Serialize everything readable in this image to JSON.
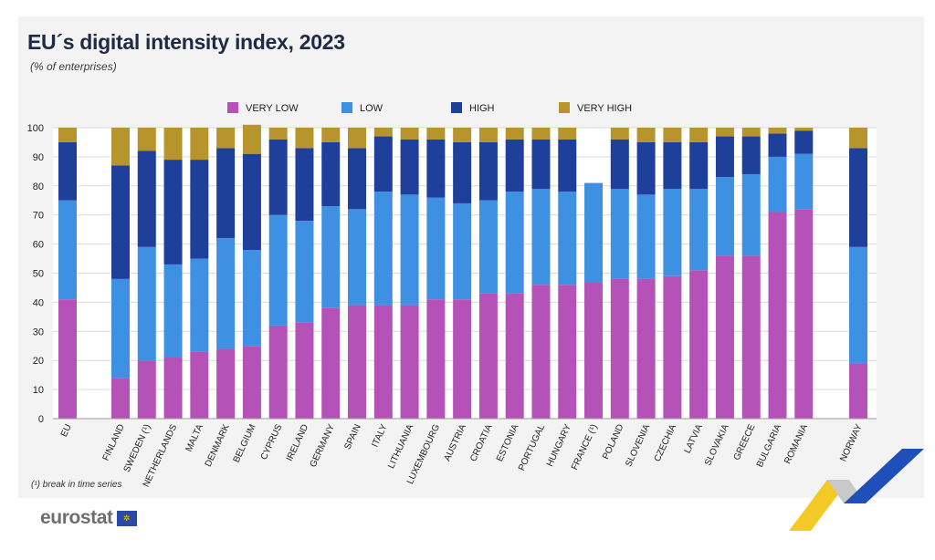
{
  "header": {
    "title": "EU´s digital intensity index, 2023",
    "subtitle": "(% of enterprises)"
  },
  "footer": {
    "footnote": "(¹) break in time series",
    "logo_text": "eurostat"
  },
  "colors": {
    "very_low": "#b552b8",
    "low": "#3e91e2",
    "high": "#1e3f9a",
    "very_high": "#b8942c"
  },
  "chart_data": {
    "type": "bar",
    "stacked": true,
    "ylim": [
      0,
      100
    ],
    "yticks": [
      0,
      10,
      20,
      30,
      40,
      50,
      60,
      70,
      80,
      90,
      100
    ],
    "grid": true,
    "legend_position": "top",
    "categories": [
      "EU",
      "FINLAND",
      "SWEDEN (¹)",
      "NETHERLANDS",
      "MALTA",
      "DENMARK",
      "BELGIUM",
      "CYPRUS",
      "IRELAND",
      "GERMANY",
      "SPAIN",
      "ITALY",
      "LITHUANIA",
      "LUXEMBOURG",
      "AUSTRIA",
      "CROATIA",
      "ESTONIA",
      "PORTUGAL",
      "HUNGARY",
      "FRANCE (¹)",
      "POLAND",
      "SLOVENIA",
      "CZECHIA",
      "LATVIA",
      "SLOVAKIA",
      "GREECE",
      "BULGARIA",
      "ROMANIA",
      "NORWAY"
    ],
    "series": [
      {
        "name": "VERY LOW",
        "color_key": "very_low",
        "values": [
          41,
          14,
          20,
          21,
          23,
          24,
          25,
          32,
          33,
          38,
          39,
          39,
          39,
          41,
          41,
          43,
          43,
          46,
          46,
          47,
          48,
          48,
          49,
          51,
          56,
          56,
          71,
          72,
          19
        ]
      },
      {
        "name": "LOW",
        "color_key": "low",
        "values": [
          34,
          34,
          39,
          32,
          32,
          38,
          33,
          38,
          35,
          35,
          33,
          39,
          38,
          35,
          33,
          32,
          35,
          33,
          32,
          34,
          31,
          29,
          30,
          28,
          27,
          28,
          19,
          19,
          40
        ]
      },
      {
        "name": "HIGH",
        "color_key": "high",
        "values": [
          20,
          39,
          33,
          36,
          34,
          31,
          33,
          26,
          25,
          22,
          21,
          19,
          19,
          20,
          21,
          20,
          18,
          17,
          18,
          0,
          17,
          18,
          16,
          16,
          14,
          13,
          8,
          8,
          34
        ]
      },
      {
        "name": "VERY HIGH",
        "color_key": "very_high",
        "values": [
          5,
          13,
          8,
          11,
          11,
          7,
          10,
          4,
          7,
          5,
          7,
          3,
          4,
          4,
          5,
          5,
          4,
          4,
          4,
          0,
          4,
          5,
          5,
          5,
          3,
          3,
          2,
          1,
          7
        ]
      }
    ]
  }
}
